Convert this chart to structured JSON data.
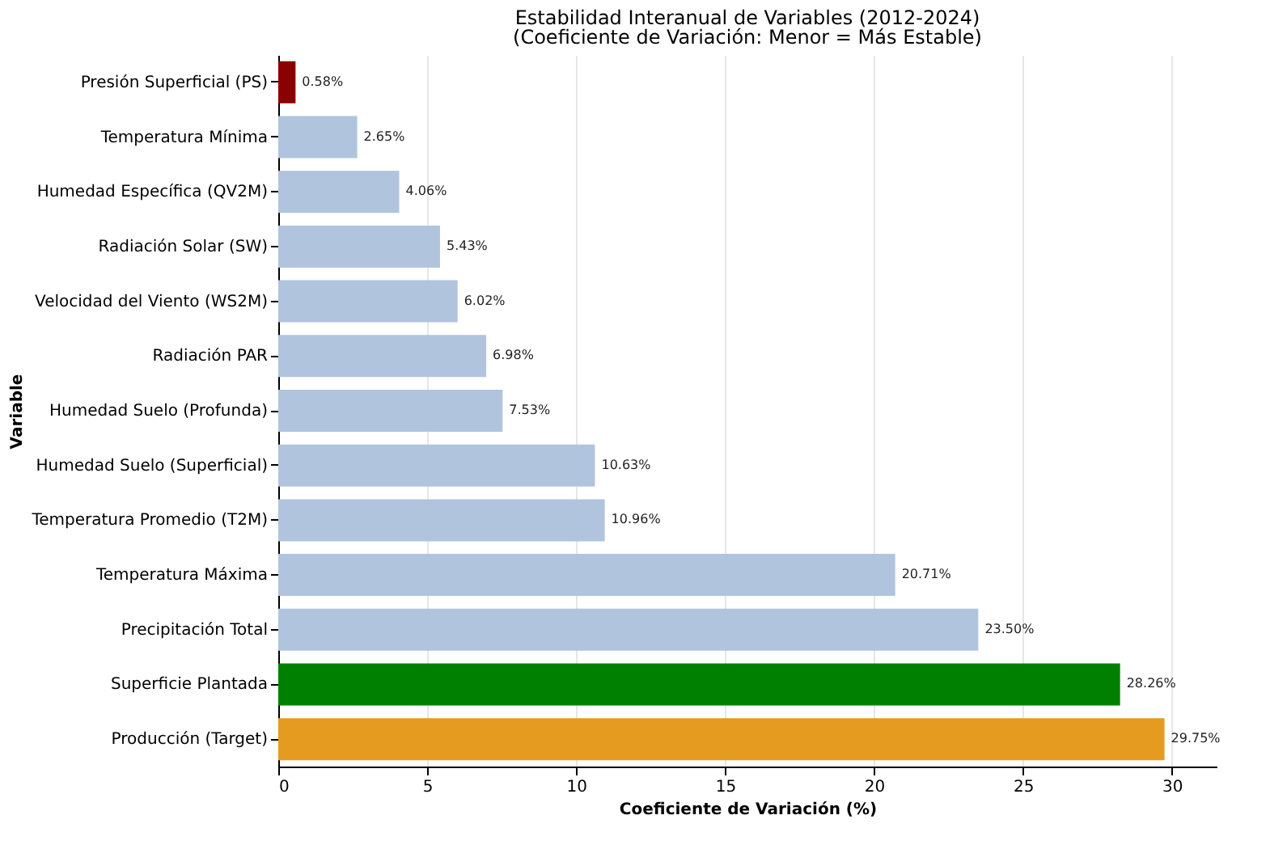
{
  "chart_data": {
    "type": "bar",
    "orientation": "horizontal",
    "title": "Estabilidad Interanual de Variables (2012-2024)",
    "subtitle": "(Coeficiente de Variación: Menor = Más Estable)",
    "xlabel": "Coeficiente de Variación (%)",
    "ylabel": "Variable",
    "categories": [
      "Presión Superficial (PS)",
      "Temperatura Mínima",
      "Humedad Específica (QV2M)",
      "Radiación Solar (SW)",
      "Velocidad del Viento (WS2M)",
      "Radiación PAR",
      "Humedad Suelo (Profunda)",
      "Humedad Suelo (Superficial)",
      "Temperatura Promedio (T2M)",
      "Temperatura Máxima",
      "Precipitación Total",
      "Superficie Plantada",
      "Producción (Target)"
    ],
    "values": [
      0.58,
      2.65,
      4.06,
      5.43,
      6.02,
      6.98,
      7.53,
      10.63,
      10.96,
      20.71,
      23.5,
      28.26,
      29.75
    ],
    "value_labels": [
      "0.58%",
      "2.65%",
      "4.06%",
      "5.43%",
      "6.02%",
      "6.98%",
      "7.53%",
      "10.63%",
      "10.96%",
      "20.71%",
      "23.50%",
      "28.26%",
      "29.75%"
    ],
    "colors": [
      "#8b0000",
      "#b0c4de",
      "#b0c4de",
      "#b0c4de",
      "#b0c4de",
      "#b0c4de",
      "#b0c4de",
      "#b0c4de",
      "#b0c4de",
      "#b0c4de",
      "#b0c4de",
      "#008000",
      "#e49b1f"
    ],
    "xlim": [
      0,
      31.5
    ],
    "xticks": [
      0,
      5,
      10,
      15,
      20,
      25,
      30
    ],
    "grid": "x"
  }
}
